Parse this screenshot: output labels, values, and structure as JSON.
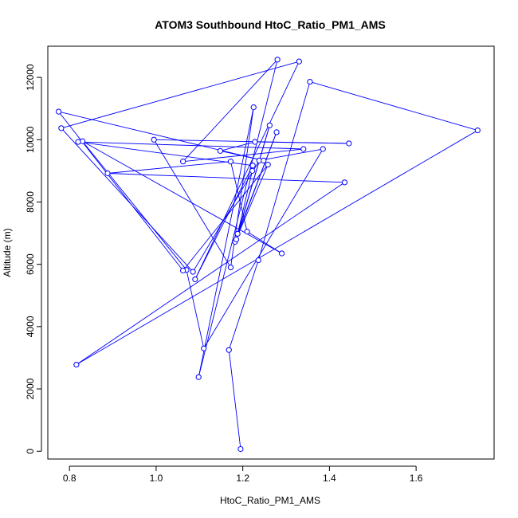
{
  "chart_data": {
    "type": "line",
    "title": "ATOM3 Southbound HtoC_Ratio_PM1_AMS",
    "xlabel": "HtoC_Ratio_PM1_AMS",
    "ylabel": "Altitude (m)",
    "xlim": [
      0.75,
      1.78
    ],
    "ylim": [
      -250,
      13000
    ],
    "xticks": [
      0.8,
      1.0,
      1.2,
      1.4,
      1.6
    ],
    "xtick_labels": [
      "0.8",
      "1.0",
      "1.2",
      "1.4",
      "1.6"
    ],
    "yticks": [
      0,
      2000,
      4000,
      6000,
      8000,
      10000,
      12000
    ],
    "ytick_labels": [
      "0",
      "2000",
      "4000",
      "6000",
      "8000",
      "10000",
      "12000"
    ],
    "grid": false,
    "legend": "none",
    "colors": {
      "series": "#0000ff",
      "axis": "#000000"
    },
    "marker": "open-circle",
    "series": [
      {
        "x": [
          1.195,
          1.168,
          1.236,
          1.355,
          1.742,
          0.816,
          1.435,
          0.888,
          1.172,
          1.21,
          1.29,
          0.83,
          1.07,
          1.11,
          1.385,
          1.238,
          1.085,
          0.781,
          1.33,
          1.09,
          1.223,
          0.82,
          1.34,
          1.062,
          1.28,
          1.098,
          1.225,
          1.172,
          0.995,
          1.445,
          1.228,
          1.148,
          1.248,
          0.775,
          1.062,
          1.258,
          1.182,
          1.278,
          1.188,
          1.262,
          1.185,
          1.222
        ],
        "y": [
          70,
          3250,
          6130,
          11860,
          10300,
          2780,
          8630,
          8920,
          9300,
          7050,
          6350,
          9950,
          5820,
          3300,
          9700,
          9330,
          5760,
          10370,
          12510,
          5520,
          9170,
          9930,
          9700,
          9300,
          12570,
          2380,
          11040,
          5900,
          10000,
          9880,
          9930,
          9640,
          9330,
          10900,
          5800,
          9200,
          6720,
          10240,
          6980,
          10460,
          6800,
          9000
        ]
      }
    ]
  }
}
